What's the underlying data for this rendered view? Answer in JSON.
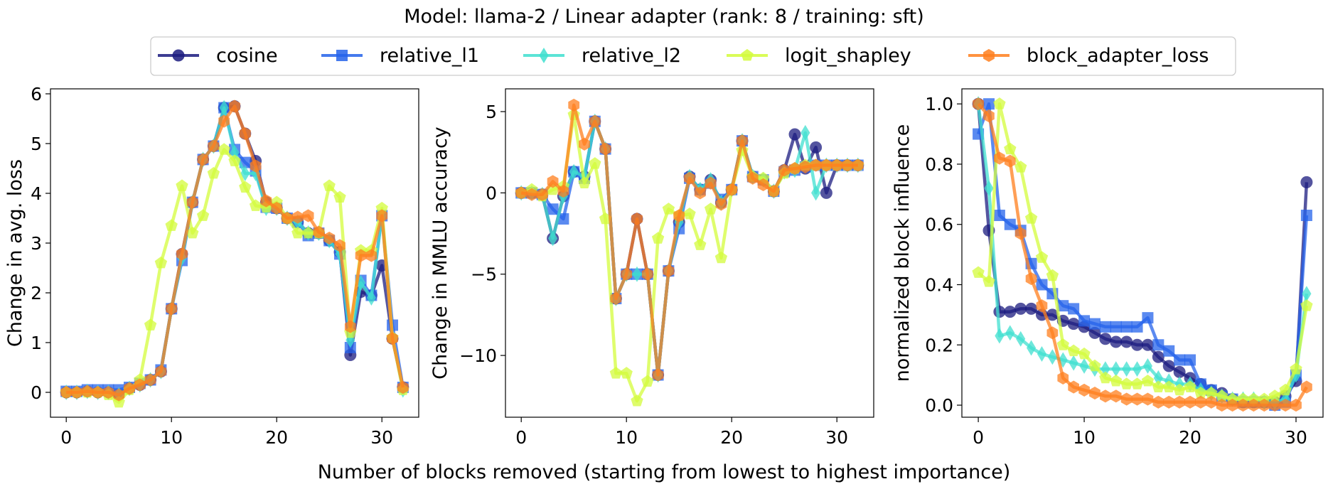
{
  "figure": {
    "title": "Model: llama-2 / Linear adapter (rank: 8 / training: sft)",
    "xlabel": "Number of blocks removed (starting from lowest to highest importance)"
  },
  "legend": [
    {
      "name": "cosine",
      "color": "#1c1c80",
      "marker": "circle"
    },
    {
      "name": "relative_l1",
      "color": "#2563eb",
      "marker": "square"
    },
    {
      "name": "relative_l2",
      "color": "#40e0d0",
      "marker": "diamond"
    },
    {
      "name": "logit_shapley",
      "color": "#d4fc3c",
      "marker": "pentagon"
    },
    {
      "name": "block_adapter_loss",
      "color": "#ff7f1e",
      "marker": "hexagon"
    }
  ],
  "chart_data": [
    {
      "type": "line",
      "ylabel": "Change in avg. loss",
      "xlim": [
        -1.5,
        33.5
      ],
      "ylim": [
        -0.5,
        6.1
      ],
      "xticks": [
        0,
        10,
        20,
        30
      ],
      "yticks": [
        0,
        1,
        2,
        3,
        4,
        5,
        6
      ],
      "x": [
        0,
        1,
        2,
        3,
        4,
        5,
        6,
        7,
        8,
        9,
        10,
        11,
        12,
        13,
        14,
        15,
        16,
        17,
        18,
        19,
        20,
        21,
        22,
        23,
        24,
        25,
        26,
        27,
        28,
        29,
        30,
        31,
        32
      ],
      "series": [
        {
          "name": "cosine",
          "values": [
            0,
            0,
            0.02,
            0,
            0,
            -0.05,
            0.08,
            0.15,
            0.25,
            0.42,
            1.68,
            2.78,
            3.82,
            4.68,
            4.95,
            5.72,
            5.75,
            5.2,
            4.65,
            3.82,
            3.7,
            3.5,
            3.42,
            3.2,
            3.2,
            3.05,
            2.82,
            0.75,
            2.02,
            1.95,
            2.55,
            1.08,
            0.1
          ]
        },
        {
          "name": "relative_l1",
          "values": [
            0.02,
            0.02,
            0.05,
            0.05,
            0.05,
            0.05,
            0.1,
            0.18,
            0.25,
            0.45,
            1.68,
            2.65,
            3.82,
            4.68,
            4.95,
            5.72,
            4.88,
            4.62,
            4.45,
            3.72,
            3.7,
            3.5,
            3.42,
            3.15,
            3.2,
            3.05,
            2.78,
            0.9,
            2.25,
            1.95,
            3.55,
            1.35,
            0.1
          ]
        },
        {
          "name": "relative_l2",
          "values": [
            0,
            0,
            0.02,
            0,
            0,
            -0.05,
            0.08,
            0.15,
            0.25,
            0.42,
            1.68,
            2.7,
            3.82,
            4.68,
            4.95,
            5.72,
            4.82,
            4.4,
            4.4,
            3.7,
            3.7,
            3.5,
            3.42,
            3.2,
            3.2,
            3.05,
            2.78,
            1.05,
            2.2,
            1.9,
            3.55,
            1.1,
            0.05
          ]
        },
        {
          "name": "logit_shapley",
          "values": [
            0,
            0,
            0,
            0,
            -0.05,
            -0.2,
            0.05,
            0.25,
            1.35,
            2.6,
            3.35,
            4.15,
            3.2,
            3.55,
            4.4,
            4.88,
            4.65,
            4.12,
            3.75,
            3.72,
            3.82,
            3.5,
            3.2,
            3.2,
            3.2,
            4.15,
            3.92,
            1.2,
            2.85,
            2.85,
            3.7,
            1.1,
            0.05
          ]
        },
        {
          "name": "block_adapter_loss",
          "values": [
            0,
            0,
            0.02,
            0,
            0,
            -0.05,
            0.08,
            0.15,
            0.25,
            0.42,
            1.68,
            2.78,
            3.82,
            4.68,
            4.95,
            5.45,
            5.75,
            5.2,
            4.55,
            3.85,
            3.7,
            3.5,
            3.52,
            3.55,
            3.22,
            3.1,
            2.95,
            1.32,
            2.75,
            2.75,
            3.55,
            1.08,
            0.1
          ]
        }
      ]
    },
    {
      "type": "line",
      "ylabel": "Change in MMLU accuracy",
      "xlim": [
        -1.5,
        33.5
      ],
      "ylim": [
        -13.8,
        6.4
      ],
      "xticks": [
        0,
        10,
        20,
        30
      ],
      "yticks": [
        -10,
        -5,
        0,
        5
      ],
      "x": [
        0,
        1,
        2,
        3,
        4,
        5,
        6,
        7,
        8,
        9,
        10,
        11,
        12,
        13,
        14,
        15,
        16,
        17,
        18,
        19,
        20,
        21,
        22,
        23,
        24,
        25,
        26,
        27,
        28,
        29,
        30,
        31,
        32
      ],
      "series": [
        {
          "name": "cosine",
          "values": [
            0,
            0,
            -0.1,
            -2.8,
            -0.2,
            1.3,
            1.0,
            4.4,
            2.7,
            -6.5,
            -5.0,
            -1.6,
            -5.0,
            -11.2,
            -4.8,
            -1.8,
            1.0,
            0.2,
            0.8,
            -0.6,
            0.2,
            3.2,
            1.0,
            0.8,
            0.1,
            1.4,
            3.6,
            1.5,
            2.8,
            0,
            1.7,
            1.7,
            1.7
          ]
        },
        {
          "name": "relative_l1",
          "values": [
            0,
            0,
            -0.1,
            -1.0,
            -1.6,
            1.3,
            0.9,
            4.4,
            2.7,
            -6.5,
            -5.0,
            -5.0,
            -5.0,
            -11.2,
            -4.8,
            -2.2,
            0.9,
            0.2,
            0.6,
            -0.4,
            0.2,
            3.2,
            1.0,
            0.8,
            0.1,
            1.3,
            1.4,
            1.6,
            1.7,
            1.7,
            1.7,
            1.7,
            1.7
          ]
        },
        {
          "name": "relative_l2",
          "values": [
            0,
            0,
            -0.1,
            -2.8,
            -0.2,
            1.3,
            1.0,
            4.4,
            2.7,
            -6.5,
            -5.0,
            -5.0,
            -5.0,
            -11.2,
            -4.8,
            -1.8,
            1.0,
            0.2,
            0.8,
            -0.6,
            0.2,
            3.2,
            1.0,
            0.8,
            0.1,
            1.3,
            1.4,
            3.7,
            0,
            1.7,
            1.7,
            1.7,
            1.7
          ]
        },
        {
          "name": "logit_shapley",
          "values": [
            0,
            0.2,
            -0.2,
            0.2,
            0.4,
            4.8,
            0.6,
            1.8,
            -1.6,
            -11.1,
            -11.1,
            -12.8,
            -11.6,
            -2.8,
            -1.0,
            -1.4,
            -1.3,
            -3.2,
            -1.0,
            -4.0,
            0.2,
            2.6,
            1.0,
            0.9,
            0.1,
            1.2,
            1.5,
            1.7,
            1.7,
            1.7,
            1.7,
            1.7,
            1.7
          ]
        },
        {
          "name": "block_adapter_loss",
          "values": [
            0,
            -0.1,
            -0.1,
            0.7,
            0.1,
            5.4,
            3.0,
            4.4,
            2.7,
            -6.5,
            -5.0,
            -1.6,
            -5.0,
            -11.2,
            -4.8,
            -1.4,
            0.9,
            0,
            0.6,
            -0.7,
            0.2,
            3.2,
            0.9,
            0.5,
            0.1,
            1.4,
            1.5,
            1.6,
            1.7,
            1.7,
            1.7,
            1.7,
            1.7
          ]
        }
      ]
    },
    {
      "type": "line",
      "ylabel": "normalized block influence",
      "xlim": [
        -1.55,
        32.55
      ],
      "ylim": [
        -0.04,
        1.05
      ],
      "xticks": [
        0,
        10,
        20,
        30
      ],
      "yticks": [
        0.0,
        0.2,
        0.4,
        0.6,
        0.8,
        1.0
      ],
      "x": [
        0,
        1,
        2,
        3,
        4,
        5,
        6,
        7,
        8,
        9,
        10,
        11,
        12,
        13,
        14,
        15,
        16,
        17,
        18,
        19,
        20,
        21,
        22,
        23,
        24,
        25,
        26,
        27,
        28,
        29,
        30,
        31
      ],
      "series": [
        {
          "name": "cosine",
          "values": [
            1.0,
            0.58,
            0.31,
            0.31,
            0.32,
            0.32,
            0.3,
            0.3,
            0.28,
            0.27,
            0.26,
            0.24,
            0.22,
            0.21,
            0.21,
            0.2,
            0.2,
            0.16,
            0.13,
            0.11,
            0.09,
            0.07,
            0.05,
            0.04,
            0.02,
            0.01,
            0.01,
            0.01,
            0.01,
            0.03,
            0.08,
            0.74
          ]
        },
        {
          "name": "relative_l1",
          "values": [
            0.9,
            1.0,
            0.63,
            0.6,
            0.58,
            0.47,
            0.4,
            0.37,
            0.33,
            0.32,
            0.28,
            0.27,
            0.26,
            0.26,
            0.26,
            0.26,
            0.29,
            0.2,
            0.18,
            0.15,
            0.15,
            0.07,
            0.05,
            0.03,
            0.02,
            0.01,
            0.01,
            0.01,
            0.0,
            0.01,
            0.1,
            0.63
          ]
        },
        {
          "name": "relative_l2",
          "values": [
            1.0,
            0.72,
            0.23,
            0.24,
            0.22,
            0.19,
            0.17,
            0.16,
            0.15,
            0.14,
            0.13,
            0.12,
            0.12,
            0.12,
            0.12,
            0.12,
            0.13,
            0.09,
            0.08,
            0.07,
            0.07,
            0.05,
            0.04,
            0.03,
            0.02,
            0.02,
            0.02,
            0.01,
            0.01,
            0.02,
            0.1,
            0.37
          ]
        },
        {
          "name": "logit_shapley",
          "values": [
            0.44,
            0.41,
            1.0,
            0.85,
            0.79,
            0.62,
            0.49,
            0.43,
            0.2,
            0.18,
            0.17,
            0.13,
            0.09,
            0.08,
            0.07,
            0.07,
            0.08,
            0.06,
            0.06,
            0.05,
            0.06,
            0.04,
            0.04,
            0.03,
            0.02,
            0.02,
            0.02,
            0.02,
            0.03,
            0.05,
            0.12,
            0.33
          ]
        },
        {
          "name": "block_adapter_loss",
          "values": [
            1.0,
            0.96,
            0.82,
            0.81,
            0.57,
            0.42,
            0.33,
            0.24,
            0.09,
            0.06,
            0.05,
            0.04,
            0.03,
            0.03,
            0.02,
            0.02,
            0.02,
            0.01,
            0.01,
            0.01,
            0.01,
            0.01,
            0.01,
            0.0,
            0.0,
            0.0,
            0.0,
            0.0,
            0.0,
            0.0,
            0.0,
            0.06
          ]
        }
      ]
    }
  ]
}
